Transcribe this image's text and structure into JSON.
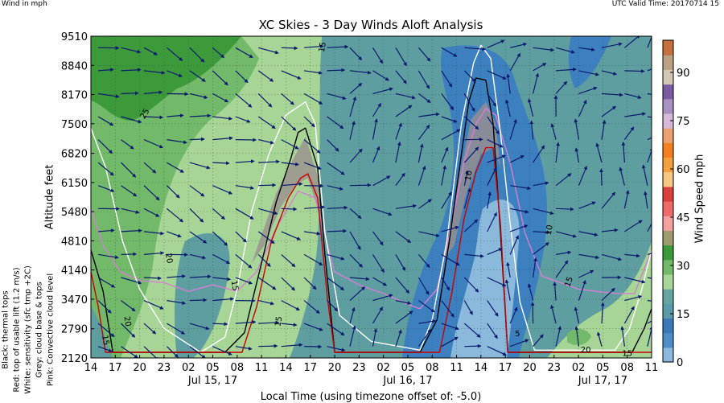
{
  "header": {
    "units": "Wind in mph",
    "valid_time": "UTC Valid Time: 20170714 15"
  },
  "chart_data": {
    "type": "heatmap",
    "title": "XC Skies - 3 Day Winds Aloft Analysis",
    "xlabel": "Local Time (using timezone offset of: -5.0)",
    "ylabel": "Altitude feet",
    "x_ticks": [
      "14",
      "17",
      "20",
      "23",
      "02",
      "05",
      "08",
      "11",
      "14",
      "17",
      "20",
      "23",
      "02",
      "05",
      "08",
      "11",
      "14",
      "17",
      "20",
      "23",
      "02",
      "05",
      "08",
      "11"
    ],
    "x_day_labels": [
      {
        "label": "Jul 15, 17",
        "tick_index": 5
      },
      {
        "label": "Jul 16, 17",
        "tick_index": 13
      },
      {
        "label": "Jul 17, 17",
        "tick_index": 21
      }
    ],
    "y_ticks": [
      2120,
      2790,
      3470,
      4140,
      4810,
      5480,
      6150,
      6820,
      7500,
      8170,
      8840,
      9510
    ],
    "ylim": [
      2120,
      9510
    ],
    "grid": true,
    "colorbar": {
      "label": "Wind Speed mph",
      "ticks": [
        0,
        15,
        30,
        45,
        60,
        75,
        90
      ],
      "range": [
        0,
        100
      ],
      "colors": [
        "#8db8dc",
        "#4d8ec6",
        "#3b78b8",
        "#5b9aa8",
        "#67a5a0",
        "#a8d59a",
        "#72ba69",
        "#3d9a3b",
        "#a09a70",
        "#f4a0a0",
        "#ef6a6a",
        "#d84040",
        "#f6c886",
        "#f5a040",
        "#f47f20",
        "#eda070",
        "#d6b8d8",
        "#a592c0",
        "#7a5aa0",
        "#d2c6b6",
        "#bba184",
        "#c47040"
      ]
    },
    "lines": {
      "black": {
        "label": "Black: thermal tops",
        "color": "#000000",
        "points": [
          [
            0,
            4600
          ],
          [
            0.5,
            3650
          ],
          [
            0.9,
            2250
          ],
          [
            5.5,
            2250
          ],
          [
            6.3,
            2700
          ],
          [
            7.0,
            4300
          ],
          [
            7.6,
            5700
          ],
          [
            8.2,
            6700
          ],
          [
            8.5,
            7300
          ],
          [
            8.8,
            7400
          ],
          [
            9.3,
            6500
          ],
          [
            9.6,
            4500
          ],
          [
            10.0,
            2250
          ],
          [
            13.5,
            2250
          ],
          [
            14.2,
            3000
          ],
          [
            14.7,
            4800
          ],
          [
            15.2,
            6800
          ],
          [
            15.5,
            8000
          ],
          [
            15.8,
            8550
          ],
          [
            16.2,
            8500
          ],
          [
            16.5,
            7500
          ],
          [
            16.8,
            5000
          ],
          [
            17.1,
            2250
          ],
          [
            22.2,
            2250
          ],
          [
            22.7,
            2800
          ],
          [
            23.0,
            3250
          ]
        ]
      },
      "red": {
        "label": "Red: top of usable lift (1.2 m/s)",
        "color": "#cc0000",
        "points": [
          [
            0,
            4100
          ],
          [
            0.3,
            3300
          ],
          [
            0.6,
            2250
          ],
          [
            6.2,
            2250
          ],
          [
            6.8,
            3300
          ],
          [
            7.4,
            4800
          ],
          [
            8.1,
            5800
          ],
          [
            8.6,
            6250
          ],
          [
            8.9,
            6350
          ],
          [
            9.3,
            5800
          ],
          [
            9.7,
            3500
          ],
          [
            10.0,
            2250
          ],
          [
            14.3,
            2250
          ],
          [
            14.8,
            3600
          ],
          [
            15.3,
            5300
          ],
          [
            15.8,
            6400
          ],
          [
            16.2,
            6950
          ],
          [
            16.5,
            6950
          ],
          [
            16.8,
            5200
          ],
          [
            17.1,
            2250
          ],
          [
            23.0,
            2250
          ]
        ]
      },
      "white": {
        "label": "White: sensitivity (sfc tmp +2C)",
        "color": "#ffffff",
        "points": [
          [
            0,
            7400
          ],
          [
            0.6,
            6500
          ],
          [
            1.3,
            4800
          ],
          [
            2.0,
            3700
          ],
          [
            3.0,
            2800
          ],
          [
            4.5,
            2250
          ],
          [
            5.5,
            2600
          ],
          [
            6.0,
            3700
          ],
          [
            6.6,
            5500
          ],
          [
            7.3,
            6800
          ],
          [
            8.0,
            7700
          ],
          [
            8.8,
            8000
          ],
          [
            9.2,
            7500
          ],
          [
            9.6,
            5000
          ],
          [
            10.2,
            3100
          ],
          [
            11.5,
            2500
          ],
          [
            13.5,
            2300
          ],
          [
            14.0,
            3000
          ],
          [
            14.6,
            4800
          ],
          [
            15.2,
            7500
          ],
          [
            15.7,
            8900
          ],
          [
            16.0,
            9300
          ],
          [
            16.4,
            9000
          ],
          [
            16.8,
            7300
          ],
          [
            17.2,
            5200
          ],
          [
            17.6,
            3400
          ],
          [
            18.2,
            2300
          ],
          [
            21.5,
            2300
          ],
          [
            22.1,
            2800
          ],
          [
            22.6,
            3700
          ],
          [
            23.0,
            4600
          ]
        ]
      },
      "pink": {
        "label": "Pink: Convective cloud level",
        "color": "#d37fd3",
        "points": [
          [
            0,
            5550
          ],
          [
            0.5,
            4700
          ],
          [
            1.2,
            4100
          ],
          [
            2.0,
            3900
          ],
          [
            3.0,
            3850
          ],
          [
            4.0,
            3650
          ],
          [
            5.0,
            3800
          ],
          [
            6.0,
            3650
          ],
          [
            6.8,
            4100
          ],
          [
            7.6,
            5100
          ],
          [
            8.5,
            5950
          ],
          [
            9.2,
            5800
          ],
          [
            10.0,
            4100
          ],
          [
            11.0,
            3800
          ],
          [
            12.0,
            3600
          ],
          [
            13.0,
            3350
          ],
          [
            13.5,
            3250
          ],
          [
            14.2,
            3700
          ],
          [
            14.8,
            5200
          ],
          [
            15.3,
            6600
          ],
          [
            15.8,
            7500
          ],
          [
            16.2,
            7850
          ],
          [
            16.6,
            7700
          ],
          [
            17.2,
            6600
          ],
          [
            17.8,
            5000
          ],
          [
            18.5,
            4000
          ],
          [
            20.0,
            3700
          ],
          [
            21.5,
            3600
          ],
          [
            22.3,
            3600
          ],
          [
            23.0,
            4600
          ]
        ]
      },
      "grey": {
        "label": "Grey: cloud base & tops",
        "color": "#9b8f8f",
        "areas": [
          [
            [
              6.6,
              4300
            ],
            [
              7.6,
              5900
            ],
            [
              8.4,
              6800
            ],
            [
              8.8,
              7200
            ],
            [
              9.3,
              6300
            ],
            [
              9.4,
              5400
            ],
            [
              8.9,
              6250
            ],
            [
              8.4,
              6100
            ],
            [
              7.8,
              5600
            ],
            [
              7.1,
              4700
            ]
          ],
          [
            [
              14.5,
              4400
            ],
            [
              15.0,
              6000
            ],
            [
              15.6,
              7600
            ],
            [
              16.2,
              8000
            ],
            [
              16.6,
              7500
            ],
            [
              16.8,
              6500
            ],
            [
              16.5,
              6950
            ],
            [
              16.0,
              6800
            ],
            [
              15.4,
              5900
            ],
            [
              14.9,
              4700
            ]
          ]
        ]
      }
    },
    "contour_labels": [
      {
        "text": "15",
        "x": 9.6,
        "y": 9250,
        "angle": -80
      },
      {
        "text": "25",
        "x": 2.3,
        "y": 7700,
        "angle": -60
      },
      {
        "text": "20",
        "x": 3.1,
        "y": 4400,
        "angle": 80
      },
      {
        "text": "15",
        "x": 5.8,
        "y": 3770,
        "angle": 80
      },
      {
        "text": "20",
        "x": 1.4,
        "y": 2950,
        "angle": 80
      },
      {
        "text": "15",
        "x": 0.5,
        "y": 2520,
        "angle": 80
      },
      {
        "text": "15",
        "x": 7.8,
        "y": 2950,
        "angle": -80
      },
      {
        "text": "10",
        "x": 15.6,
        "y": 6300,
        "angle": -80
      },
      {
        "text": "10",
        "x": 18.9,
        "y": 5050,
        "angle": -80
      },
      {
        "text": "15",
        "x": 19.7,
        "y": 3850,
        "angle": -70
      },
      {
        "text": "5",
        "x": 17.5,
        "y": 2620,
        "angle": 0
      },
      {
        "text": "20",
        "x": 20.3,
        "y": 2250,
        "angle": 0
      },
      {
        "text": "15",
        "x": 22.0,
        "y": 2170,
        "angle": 0
      }
    ]
  }
}
